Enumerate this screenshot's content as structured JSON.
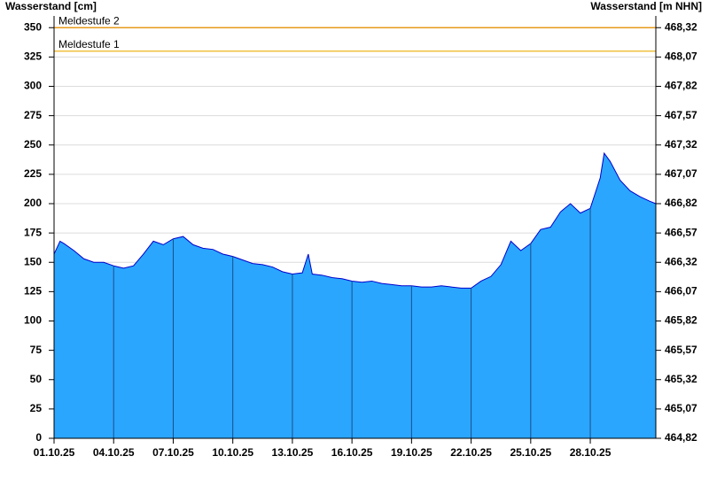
{
  "chart_data": {
    "type": "area",
    "y_label": "Wasserstand [cm]",
    "y2_label": "Wasserstand [m NHN]",
    "color": "#2aa6ff",
    "line_color": "#0000cc",
    "grid": true,
    "x": [
      0,
      0.3,
      0.5,
      1,
      1.5,
      2,
      2.5,
      3,
      3.5,
      4,
      4.5,
      5,
      5.5,
      6,
      6.5,
      7,
      7.5,
      8,
      8.5,
      9,
      9.5,
      10,
      10.5,
      11,
      11.5,
      12,
      12.5,
      12.8,
      13,
      13.5,
      14,
      14.5,
      15,
      15.5,
      16,
      16.5,
      17,
      17.5,
      18,
      18.5,
      19,
      19.5,
      20,
      20.5,
      21,
      21.5,
      22,
      22.5,
      23,
      23.5,
      24,
      24.5,
      25,
      25.5,
      26,
      26.5,
      27,
      27.5,
      27.7,
      28,
      28.5,
      29,
      29.5,
      30,
      30.3
    ],
    "values": [
      157,
      168,
      166,
      160,
      153,
      150,
      150,
      147,
      145,
      147,
      157,
      168,
      165,
      170,
      172,
      165,
      162,
      161,
      157,
      155,
      152,
      149,
      148,
      146,
      142,
      140,
      141,
      157,
      140,
      139,
      137,
      136,
      134,
      133,
      134,
      132,
      131,
      130,
      130,
      129,
      129,
      130,
      129,
      128,
      128,
      134,
      138,
      148,
      168,
      160,
      166,
      178,
      180,
      193,
      200,
      192,
      196,
      222,
      243,
      236,
      220,
      211,
      206,
      202,
      200
    ],
    "xlim": [
      0,
      30.3
    ],
    "xticks": [
      {
        "value": 0,
        "label": "01.10.25"
      },
      {
        "value": 3,
        "label": "04.10.25"
      },
      {
        "value": 6,
        "label": "07.10.25"
      },
      {
        "value": 9,
        "label": "10.10.25"
      },
      {
        "value": 12,
        "label": "13.10.25"
      },
      {
        "value": 15,
        "label": "16.10.25"
      },
      {
        "value": 18,
        "label": "19.10.25"
      },
      {
        "value": 21,
        "label": "22.10.25"
      },
      {
        "value": 24,
        "label": "25.10.25"
      },
      {
        "value": 27,
        "label": "28.10.25"
      }
    ],
    "ylim": [
      0,
      360
    ],
    "yticks": [
      0,
      25,
      50,
      75,
      100,
      125,
      150,
      175,
      200,
      225,
      250,
      275,
      300,
      325,
      350
    ],
    "y2lim": [
      464.82,
      468.42
    ],
    "y2ticks": [
      {
        "value": 464.82,
        "label": "464,82"
      },
      {
        "value": 465.07,
        "label": "465,07"
      },
      {
        "value": 465.32,
        "label": "465,32"
      },
      {
        "value": 465.57,
        "label": "465,57"
      },
      {
        "value": 465.82,
        "label": "465,82"
      },
      {
        "value": 466.07,
        "label": "466,07"
      },
      {
        "value": 466.32,
        "label": "466,32"
      },
      {
        "value": 466.57,
        "label": "466,57"
      },
      {
        "value": 466.82,
        "label": "466,82"
      },
      {
        "value": 467.07,
        "label": "467,07"
      },
      {
        "value": 467.32,
        "label": "467,32"
      },
      {
        "value": 467.57,
        "label": "467,57"
      },
      {
        "value": 467.82,
        "label": "467,82"
      },
      {
        "value": 468.07,
        "label": "468,07"
      },
      {
        "value": 468.32,
        "label": "468,32"
      }
    ],
    "thresholds": [
      {
        "label": "Meldestufe 2",
        "value": 350,
        "color": "#e89a1c"
      },
      {
        "label": "Meldestufe 1",
        "value": 330,
        "color": "#f0c040"
      }
    ]
  }
}
